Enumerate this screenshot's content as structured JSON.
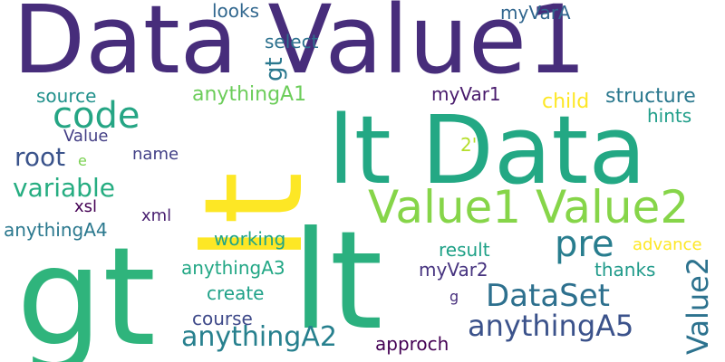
{
  "words": [
    {
      "id": "w1",
      "text": "Data Value1",
      "color": "#472d7b"
    },
    {
      "id": "w2",
      "text": "lt Data",
      "color": "#23a884"
    },
    {
      "id": "w3",
      "text": "lt",
      "color": "#2bb07f"
    },
    {
      "id": "w4",
      "text": "gt",
      "color": "#2fb47c"
    },
    {
      "id": "w5",
      "text": "lt",
      "color": "#fde725"
    },
    {
      "id": "w6",
      "text": "Value1 Value2",
      "color": "#86d549"
    },
    {
      "id": "w7",
      "text": "code",
      "color": "#25a584"
    },
    {
      "id": "w8",
      "text": "DataSet",
      "color": "#2d708e"
    },
    {
      "id": "w9",
      "text": "pre",
      "color": "#287d8e"
    },
    {
      "id": "w10",
      "text": "anythingA5",
      "color": "#3b528b"
    },
    {
      "id": "w11",
      "text": "anythingA2",
      "color": "#27808e"
    },
    {
      "id": "w12",
      "text": "Value2",
      "color": "#2c728e"
    },
    {
      "id": "w13",
      "text": "gt",
      "color": "#2a788e"
    },
    {
      "id": "w14",
      "text": "root",
      "color": "#3a538b"
    },
    {
      "id": "w15",
      "text": "variable",
      "color": "#26ad81"
    },
    {
      "id": "w16",
      "text": "anythingA1",
      "color": "#6ccd5a"
    },
    {
      "id": "w17",
      "text": "select",
      "color": "#2d718e"
    },
    {
      "id": "w18",
      "text": "looks",
      "color": "#31678e"
    },
    {
      "id": "w19",
      "text": "myVarA",
      "color": "#31668e"
    },
    {
      "id": "w20",
      "text": "myVar1",
      "color": "#481a6c"
    },
    {
      "id": "w21",
      "text": "source",
      "color": "#21918c"
    },
    {
      "id": "w22",
      "text": "structure",
      "color": "#2a788e"
    },
    {
      "id": "w23",
      "text": "child",
      "color": "#fde725"
    },
    {
      "id": "w24",
      "text": "hints",
      "color": "#1f9e89"
    },
    {
      "id": "w25",
      "text": "Value",
      "color": "#433e85"
    },
    {
      "id": "w26",
      "text": "e",
      "color": "#7ad151"
    },
    {
      "id": "w27",
      "text": "2'",
      "color": "#b5de2b"
    },
    {
      "id": "w28",
      "text": "name",
      "color": "#424086"
    },
    {
      "id": "w29",
      "text": "xsl",
      "color": "#440154"
    },
    {
      "id": "w30",
      "text": "xml",
      "color": "#481f70"
    },
    {
      "id": "w31",
      "text": "anythingA4",
      "color": "#2a788e"
    },
    {
      "id": "w32",
      "text": "working",
      "color": "#20a486"
    },
    {
      "id": "w33",
      "text": "advance",
      "color": "#fde725"
    },
    {
      "id": "w34",
      "text": "result",
      "color": "#1fa187"
    },
    {
      "id": "w35",
      "text": "anythingA3",
      "color": "#22a785"
    },
    {
      "id": "w36",
      "text": "thanks",
      "color": "#1f9a8a"
    },
    {
      "id": "w37",
      "text": "myVar2",
      "color": "#46337f"
    },
    {
      "id": "w38",
      "text": "create",
      "color": "#1fa188"
    },
    {
      "id": "w39",
      "text": "g",
      "color": "#472f7d"
    },
    {
      "id": "w40",
      "text": "course",
      "color": "#3e4989"
    },
    {
      "id": "w41",
      "text": "approch",
      "color": "#440154"
    }
  ]
}
